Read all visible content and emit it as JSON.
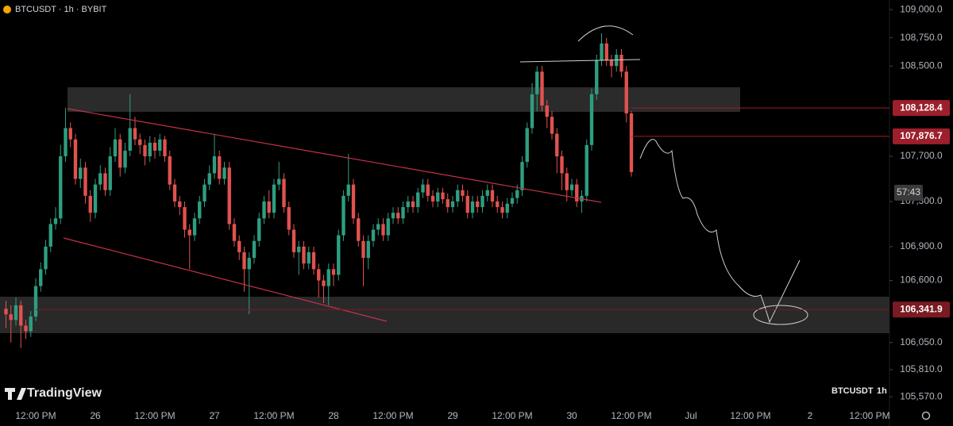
{
  "chart_data": {
    "type": "candlestick",
    "title": "BTCUSDT · 1h · BYBIT",
    "brand": "TradingView",
    "symbol": "BTCUSDT",
    "interval": "1h",
    "countdown": "57:43",
    "up_color": "#2e9e80",
    "down_color": "#e0524f",
    "grid": false,
    "ylim": [
      105430,
      109085
    ],
    "xlim": [
      -1.2,
      178
    ],
    "yticks": [
      {
        "value": 109000,
        "label": "109,000.0"
      },
      {
        "value": 108750,
        "label": "108,750.0"
      },
      {
        "value": 108500,
        "label": "108,500.0"
      },
      {
        "value": 107700,
        "label": "107,700.0"
      },
      {
        "value": 107300,
        "label": "107,300.0"
      },
      {
        "value": 106900,
        "label": "106,900.0"
      },
      {
        "value": 106600,
        "label": "106,600.0"
      },
      {
        "value": 106050,
        "label": "106,050.0"
      },
      {
        "value": 105810,
        "label": "105,810.0"
      },
      {
        "value": 105570,
        "label": "105,570.0"
      }
    ],
    "xticks": [
      {
        "value": 6,
        "label": "12:00 PM"
      },
      {
        "value": 18,
        "label": "26"
      },
      {
        "value": 30,
        "label": "12:00 PM"
      },
      {
        "value": 42,
        "label": "27"
      },
      {
        "value": 54,
        "label": "12:00 PM"
      },
      {
        "value": 66,
        "label": "28"
      },
      {
        "value": 78,
        "label": "12:00 PM"
      },
      {
        "value": 90,
        "label": "29"
      },
      {
        "value": 102,
        "label": "12:00 PM"
      },
      {
        "value": 114,
        "label": "30"
      },
      {
        "value": 126,
        "label": "12:00 PM"
      },
      {
        "value": 138,
        "label": "Jul"
      },
      {
        "value": 150,
        "label": "12:00 PM"
      },
      {
        "value": 162,
        "label": "2"
      },
      {
        "value": 174,
        "label": "12:00 PM"
      }
    ],
    "price_lines": [
      {
        "value": 108128.4,
        "label": "108,128.4",
        "color": "#9c1f2b"
      },
      {
        "value": 107876.7,
        "label": "107,876.7",
        "color": "#9c1f2b"
      },
      {
        "value": 106341.9,
        "label": "106,341.9",
        "color": "#7a1a22"
      }
    ],
    "open": [
      106350,
      106300,
      106250,
      106380,
      106200,
      106150,
      106280,
      106550,
      106700,
      106900,
      107100,
      107150,
      107700,
      107950,
      107850,
      107500,
      107600,
      107350,
      107200,
      107450,
      107550,
      107400,
      107700,
      107850,
      107600,
      107750,
      107950,
      107850,
      107800,
      107700,
      107820,
      107750,
      107850,
      107700,
      107450,
      107300,
      107250,
      107050,
      107000,
      107150,
      107300,
      107450,
      107550,
      107700,
      107500,
      107600,
      107100,
      106950,
      106850,
      106700,
      106800,
      106950,
      107150,
      107300,
      107200,
      107450,
      107500,
      107250,
      107050,
      106850,
      106900,
      106750,
      106850,
      106700,
      106600,
      106550,
      106700,
      106650,
      107000,
      107350,
      107450,
      107150,
      106950,
      106800,
      106950,
      107050,
      107100,
      107000,
      107150,
      107200,
      107150,
      107250,
      107300,
      107250,
      107380,
      107450,
      107350,
      107300,
      107380,
      107320,
      107250,
      107300,
      107400,
      107350,
      107200,
      107300,
      107250,
      107350,
      107400,
      107300,
      107250,
      107200,
      107280,
      107330,
      107400,
      107650,
      107950,
      108250,
      108450,
      108150,
      108050,
      107900,
      107700,
      107550,
      107400,
      107450,
      107300,
      107350,
      107800,
      108250,
      108550,
      108700,
      108550,
      108500,
      108600,
      108450,
      108080
    ],
    "high": [
      106420,
      106380,
      106450,
      106420,
      106250,
      106330,
      106620,
      106760,
      106960,
      107150,
      107250,
      107800,
      108130,
      108000,
      107900,
      107680,
      107650,
      107400,
      107500,
      107620,
      107600,
      107780,
      107950,
      107900,
      107820,
      108250,
      108050,
      107900,
      107850,
      107880,
      107870,
      107900,
      107880,
      107750,
      107500,
      107350,
      107300,
      107100,
      107200,
      107350,
      107500,
      107620,
      107900,
      107750,
      107650,
      107650,
      107150,
      107000,
      106900,
      106850,
      107000,
      107200,
      107350,
      107400,
      107500,
      107650,
      107550,
      107300,
      107100,
      106950,
      106950,
      106900,
      106900,
      106750,
      106650,
      106750,
      106750,
      107050,
      107400,
      107720,
      107500,
      107200,
      107000,
      107000,
      107100,
      107150,
      107150,
      107200,
      107250,
      107250,
      107300,
      107350,
      107350,
      107420,
      107500,
      107500,
      107400,
      107420,
      107420,
      107370,
      107350,
      107450,
      107450,
      107400,
      107350,
      107350,
      107400,
      107450,
      107450,
      107350,
      107300,
      107330,
      107380,
      107450,
      107700,
      108000,
      108350,
      108500,
      108500,
      108200,
      108100,
      107950,
      107750,
      107600,
      107500,
      107500,
      107400,
      107850,
      108300,
      108600,
      108790,
      108750,
      108600,
      108650,
      108650,
      108500,
      108100
    ],
    "low": [
      106180,
      106050,
      106200,
      106000,
      106080,
      106100,
      106240,
      106500,
      106650,
      106850,
      107050,
      107100,
      107650,
      107780,
      107450,
      107420,
      107280,
      107120,
      107150,
      107400,
      107350,
      107350,
      107650,
      107520,
      107550,
      107700,
      107800,
      107720,
      107620,
      107650,
      107680,
      107700,
      107650,
      107400,
      107250,
      107180,
      106980,
      106700,
      106950,
      107100,
      107250,
      107400,
      107500,
      107450,
      107450,
      107050,
      106900,
      106780,
      106500,
      106300,
      106750,
      106900,
      107100,
      107150,
      107150,
      107400,
      107200,
      107000,
      106800,
      106650,
      106700,
      106700,
      106650,
      106450,
      106400,
      106380,
      106550,
      106600,
      106950,
      107300,
      107100,
      106900,
      106550,
      106700,
      106900,
      107000,
      106950,
      106950,
      107100,
      107100,
      107100,
      107200,
      107200,
      107200,
      107330,
      107300,
      107250,
      107250,
      107280,
      107200,
      107200,
      107250,
      107300,
      107150,
      107150,
      107200,
      107200,
      107300,
      107250,
      107200,
      107150,
      107150,
      107250,
      107280,
      107350,
      107600,
      107900,
      108100,
      108100,
      107950,
      107850,
      107550,
      107400,
      107300,
      107350,
      107250,
      107200,
      107300,
      107750,
      108200,
      108500,
      108500,
      108400,
      108450,
      108400,
      108000,
      107520
    ],
    "close": [
      106300,
      106250,
      106380,
      106200,
      106150,
      106280,
      106550,
      106700,
      106900,
      107100,
      107150,
      107700,
      107950,
      107850,
      107500,
      107600,
      107350,
      107200,
      107450,
      107550,
      107400,
      107700,
      107850,
      107600,
      107750,
      107950,
      107850,
      107800,
      107700,
      107820,
      107750,
      107850,
      107700,
      107450,
      107300,
      107250,
      107050,
      107000,
      107150,
      107300,
      107450,
      107550,
      107700,
      107500,
      107600,
      107100,
      106950,
      106850,
      106700,
      106800,
      106950,
      107150,
      107300,
      107200,
      107450,
      107500,
      107250,
      107050,
      106850,
      106900,
      106750,
      106850,
      106700,
      106600,
      106550,
      106700,
      106650,
      107000,
      107350,
      107450,
      107150,
      106950,
      106800,
      106950,
      107050,
      107100,
      107000,
      107150,
      107200,
      107150,
      107250,
      107300,
      107250,
      107380,
      107450,
      107350,
      107300,
      107380,
      107320,
      107250,
      107300,
      107400,
      107350,
      107200,
      107300,
      107250,
      107350,
      107400,
      107300,
      107250,
      107200,
      107280,
      107330,
      107400,
      107650,
      107950,
      108250,
      108450,
      108150,
      108050,
      107900,
      107700,
      107550,
      107400,
      107450,
      107300,
      107350,
      107800,
      108250,
      108550,
      108700,
      108550,
      108500,
      108600,
      108450,
      108080,
      107560
    ]
  }
}
